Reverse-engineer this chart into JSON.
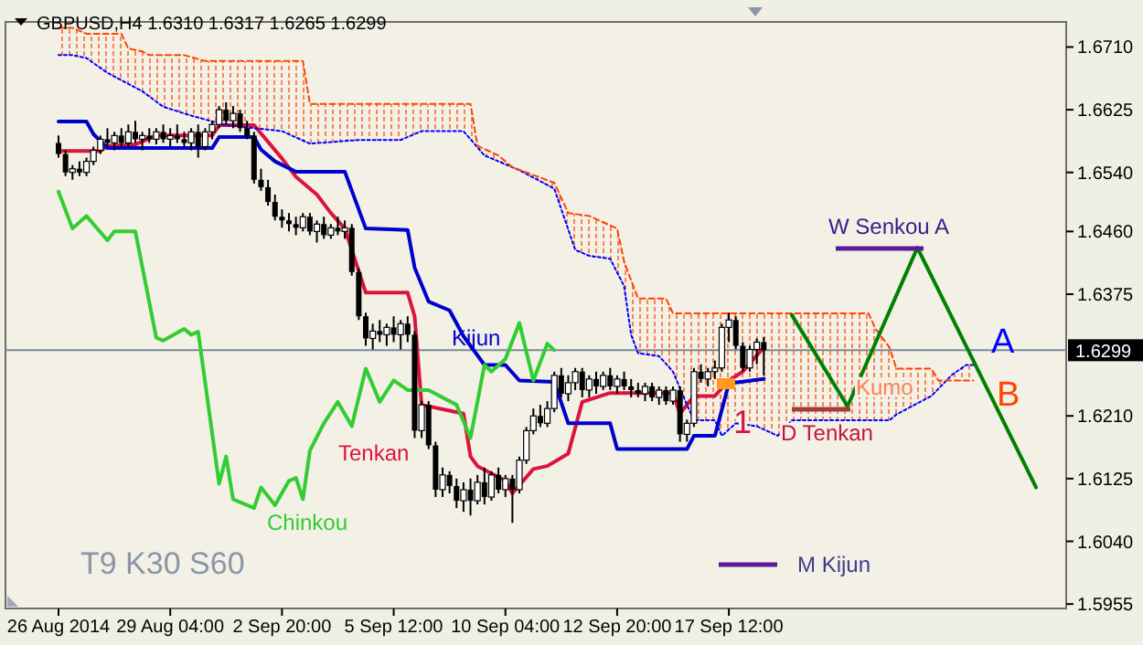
{
  "chart_data": {
    "type": "candlestick",
    "title": "GBPUSD,H4 1.6310 1.6317 1.6265 1.6299",
    "categories": [
      "26 Aug 2014",
      null,
      null,
      null,
      null,
      null,
      null,
      null,
      null,
      null,
      null,
      null,
      null,
      null,
      null,
      null,
      "29 Aug 04:00",
      null,
      null,
      null,
      null,
      null,
      null,
      null,
      null,
      null,
      null,
      null,
      null,
      null,
      null,
      null,
      "2 Sep 20:00",
      null,
      null,
      null,
      null,
      null,
      null,
      null,
      null,
      null,
      null,
      null,
      null,
      null,
      null,
      null,
      "5 Sep 12:00",
      null,
      null,
      null,
      null,
      null,
      null,
      null,
      null,
      null,
      null,
      null,
      null,
      null,
      null,
      null,
      "10 Sep 04:00",
      null,
      null,
      null,
      null,
      null,
      null,
      null,
      null,
      null,
      null,
      null,
      null,
      null,
      null,
      null,
      "12 Sep 20:00",
      null,
      null,
      null,
      null,
      null,
      null,
      null,
      null,
      null,
      null,
      null,
      null,
      null,
      null,
      null,
      "17 Sep 12:00",
      null,
      null,
      null,
      null,
      null,
      null,
      null,
      null,
      null,
      null,
      null,
      null,
      null,
      null,
      null,
      null,
      null,
      null,
      null,
      null,
      null,
      null,
      null,
      null,
      null,
      null,
      null,
      null,
      null,
      null,
      null,
      null,
      null,
      null,
      null,
      null,
      null,
      null,
      null,
      null,
      null,
      null,
      null,
      null,
      null,
      null,
      null
    ],
    "ohlc": [
      [
        1.658,
        1.659,
        1.656,
        1.6565
      ],
      [
        1.6565,
        1.657,
        1.6535,
        1.654
      ],
      [
        1.654,
        1.655,
        1.653,
        1.6545
      ],
      [
        1.6545,
        1.6555,
        1.6535,
        1.654
      ],
      [
        1.654,
        1.656,
        1.6535,
        1.6555
      ],
      [
        1.6555,
        1.6575,
        1.655,
        1.657
      ],
      [
        1.657,
        1.659,
        1.6565,
        1.6585
      ],
      [
        1.6585,
        1.66,
        1.6575,
        1.658
      ],
      [
        1.658,
        1.6595,
        1.657,
        1.659
      ],
      [
        1.659,
        1.66,
        1.6575,
        1.658
      ],
      [
        1.658,
        1.6605,
        1.6575,
        1.6595
      ],
      [
        1.6595,
        1.661,
        1.658,
        1.6585
      ],
      [
        1.6585,
        1.6595,
        1.657,
        1.659
      ],
      [
        1.659,
        1.66,
        1.658,
        1.6585
      ],
      [
        1.6585,
        1.66,
        1.6578,
        1.6595
      ],
      [
        1.6595,
        1.6605,
        1.658,
        1.6585
      ],
      [
        1.6585,
        1.66,
        1.6575,
        1.659
      ],
      [
        1.659,
        1.6605,
        1.658,
        1.6585
      ],
      [
        1.6585,
        1.6595,
        1.6575,
        1.658
      ],
      [
        1.658,
        1.66,
        1.657,
        1.6595
      ],
      [
        1.6595,
        1.6605,
        1.656,
        1.6575
      ],
      [
        1.6575,
        1.66,
        1.657,
        1.6595
      ],
      [
        1.6595,
        1.661,
        1.6585,
        1.6605
      ],
      [
        1.6605,
        1.663,
        1.66,
        1.6625
      ],
      [
        1.6625,
        1.6635,
        1.6605,
        1.661
      ],
      [
        1.661,
        1.663,
        1.66,
        1.662
      ],
      [
        1.662,
        1.6625,
        1.6595,
        1.66
      ],
      [
        1.66,
        1.661,
        1.6585,
        1.659
      ],
      [
        1.659,
        1.6595,
        1.6525,
        1.653
      ],
      [
        1.653,
        1.6545,
        1.6515,
        1.652
      ],
      [
        1.652,
        1.653,
        1.6495,
        1.65
      ],
      [
        1.65,
        1.651,
        1.6475,
        1.648
      ],
      [
        1.648,
        1.649,
        1.6465,
        1.6475
      ],
      [
        1.6475,
        1.6485,
        1.646,
        1.647
      ],
      [
        1.647,
        1.648,
        1.6455,
        1.6465
      ],
      [
        1.6465,
        1.6485,
        1.646,
        1.648
      ],
      [
        1.648,
        1.6485,
        1.6455,
        1.646
      ],
      [
        1.646,
        1.6475,
        1.6445,
        1.647
      ],
      [
        1.647,
        1.648,
        1.645,
        1.6455
      ],
      [
        1.6455,
        1.647,
        1.645,
        1.6465
      ],
      [
        1.6465,
        1.648,
        1.6455,
        1.646
      ],
      [
        1.646,
        1.6475,
        1.645,
        1.6465
      ],
      [
        1.6465,
        1.647,
        1.64,
        1.6405
      ],
      [
        1.6405,
        1.641,
        1.634,
        1.6345
      ],
      [
        1.6345,
        1.635,
        1.6305,
        1.6315
      ],
      [
        1.6315,
        1.6335,
        1.63,
        1.6325
      ],
      [
        1.6325,
        1.634,
        1.631,
        1.632
      ],
      [
        1.632,
        1.6335,
        1.6305,
        1.633
      ],
      [
        1.633,
        1.6345,
        1.631,
        1.632
      ],
      [
        1.632,
        1.634,
        1.63,
        1.6335
      ],
      [
        1.6335,
        1.6345,
        1.631,
        1.632
      ],
      [
        1.632,
        1.6325,
        1.618,
        1.619
      ],
      [
        1.619,
        1.623,
        1.618,
        1.6225
      ],
      [
        1.6225,
        1.623,
        1.6165,
        1.617
      ],
      [
        1.617,
        1.6175,
        1.61,
        1.611
      ],
      [
        1.611,
        1.614,
        1.61,
        1.613
      ],
      [
        1.613,
        1.6135,
        1.6105,
        1.6115
      ],
      [
        1.6115,
        1.6125,
        1.6085,
        1.6095
      ],
      [
        1.6095,
        1.612,
        1.608,
        1.611
      ],
      [
        1.611,
        1.6125,
        1.6075,
        1.6095
      ],
      [
        1.6095,
        1.613,
        1.609,
        1.612
      ],
      [
        1.612,
        1.614,
        1.609,
        1.61
      ],
      [
        1.61,
        1.6135,
        1.6095,
        1.613
      ],
      [
        1.613,
        1.614,
        1.6105,
        1.611
      ],
      [
        1.611,
        1.613,
        1.61,
        1.6125
      ],
      [
        1.6125,
        1.613,
        1.6065,
        1.611
      ],
      [
        1.611,
        1.6155,
        1.6105,
        1.615
      ],
      [
        1.615,
        1.6195,
        1.6145,
        1.619
      ],
      [
        1.619,
        1.622,
        1.6185,
        1.621
      ],
      [
        1.621,
        1.6225,
        1.6195,
        1.62
      ],
      [
        1.62,
        1.623,
        1.6195,
        1.622
      ],
      [
        1.622,
        1.627,
        1.6215,
        1.6265
      ],
      [
        1.6265,
        1.6275,
        1.6235,
        1.624
      ],
      [
        1.624,
        1.6265,
        1.623,
        1.6255
      ],
      [
        1.6255,
        1.6275,
        1.6245,
        1.627
      ],
      [
        1.627,
        1.6275,
        1.6235,
        1.6245
      ],
      [
        1.6245,
        1.6265,
        1.6235,
        1.626
      ],
      [
        1.626,
        1.627,
        1.624,
        1.625
      ],
      [
        1.625,
        1.627,
        1.6245,
        1.6265
      ],
      [
        1.6265,
        1.6275,
        1.6245,
        1.625
      ],
      [
        1.625,
        1.6265,
        1.624,
        1.626
      ],
      [
        1.626,
        1.627,
        1.6245,
        1.625
      ],
      [
        1.625,
        1.626,
        1.6235,
        1.6245
      ],
      [
        1.6245,
        1.6255,
        1.6235,
        1.624
      ],
      [
        1.624,
        1.6255,
        1.623,
        1.625
      ],
      [
        1.625,
        1.6255,
        1.623,
        1.6235
      ],
      [
        1.6235,
        1.625,
        1.6225,
        1.6245
      ],
      [
        1.6245,
        1.625,
        1.6225,
        1.623
      ],
      [
        1.623,
        1.625,
        1.6225,
        1.6245
      ],
      [
        1.6245,
        1.625,
        1.6175,
        1.6185
      ],
      [
        1.6185,
        1.6205,
        1.6175,
        1.62
      ],
      [
        1.62,
        1.6275,
        1.6195,
        1.627
      ],
      [
        1.627,
        1.628,
        1.6255,
        1.626
      ],
      [
        1.626,
        1.6275,
        1.625,
        1.627
      ],
      [
        1.627,
        1.6285,
        1.626,
        1.6275
      ],
      [
        1.6275,
        1.6335,
        1.627,
        1.633
      ],
      [
        1.633,
        1.635,
        1.631,
        1.634
      ],
      [
        1.634,
        1.6345,
        1.63,
        1.6305
      ],
      [
        1.6305,
        1.631,
        1.627,
        1.6275
      ],
      [
        1.6275,
        1.6305,
        1.627,
        1.63
      ],
      [
        1.63,
        1.6315,
        1.628,
        1.631
      ],
      [
        1.631,
        1.6317,
        1.6265,
        1.6299
      ],
      null,
      null,
      null,
      null,
      null,
      null,
      null,
      null,
      null,
      null,
      null,
      null,
      null,
      null,
      null,
      null,
      null,
      null,
      null,
      null,
      null,
      null,
      null,
      null,
      null,
      null,
      null,
      null,
      null,
      null,
      null,
      null,
      null,
      null,
      null,
      null,
      null,
      null,
      null,
      null,
      null,
      null
    ],
    "series": [
      {
        "name": "Tenkan",
        "type": "line",
        "color": "#dc143c",
        "line_style": "solid",
        "values": [
          1.6569,
          null,
          null,
          null,
          null,
          null,
          1.6569,
          1.6576,
          null,
          null,
          null,
          1.6578,
          null,
          null,
          1.659,
          null,
          null,
          null,
          null,
          null,
          null,
          null,
          1.659,
          1.6604,
          null,
          null,
          null,
          null,
          1.6604,
          null,
          null,
          null,
          1.6559,
          null,
          1.6534,
          null,
          null,
          1.651,
          null,
          1.6485,
          null,
          1.6464,
          null,
          null,
          1.6377,
          null,
          null,
          null,
          null,
          null,
          1.6377,
          1.6345,
          1.6225,
          null,
          null,
          null,
          1.6217,
          null,
          1.6213,
          1.6155,
          1.6142,
          null,
          null,
          null,
          1.6122,
          1.6105,
          null,
          null,
          1.6138,
          null,
          1.6142,
          null,
          null,
          1.6159,
          null,
          1.6229,
          null,
          null,
          null,
          1.6241,
          null,
          null,
          null,
          null,
          null,
          null,
          null,
          null,
          1.6241,
          1.6213,
          null,
          1.6237,
          null,
          null,
          1.6237,
          null,
          1.6258,
          null,
          1.627,
          null,
          null,
          1.6303,
          null,
          null,
          null,
          null,
          null,
          null,
          null,
          null,
          null,
          null,
          null,
          null,
          null,
          null,
          null,
          null,
          null,
          null,
          null,
          null,
          null,
          null,
          null,
          null,
          null,
          null,
          null,
          null,
          null,
          null,
          null,
          null,
          null,
          null,
          null,
          null,
          null,
          null,
          null,
          null,
          null,
          null
        ]
      },
      {
        "name": "Kijun",
        "type": "line",
        "color": "#0000cd",
        "line_style": "solid",
        "values": [
          1.6609,
          null,
          null,
          null,
          1.6609,
          1.6592,
          null,
          1.6573,
          null,
          null,
          null,
          null,
          null,
          null,
          null,
          null,
          null,
          null,
          null,
          null,
          null,
          null,
          1.6573,
          1.6588,
          null,
          null,
          null,
          null,
          1.6588,
          1.6571,
          null,
          1.6555,
          null,
          null,
          1.6541,
          null,
          null,
          null,
          null,
          null,
          null,
          1.6541,
          null,
          null,
          1.6464,
          null,
          null,
          null,
          null,
          null,
          1.6462,
          1.6411,
          null,
          1.6365,
          null,
          null,
          1.6353,
          null,
          1.6318,
          null,
          null,
          1.6279,
          null,
          null,
          1.6279,
          null,
          1.6258,
          null,
          null,
          null,
          null,
          1.6256,
          null,
          1.62,
          null,
          null,
          null,
          null,
          null,
          1.62,
          1.6165,
          null,
          null,
          null,
          null,
          null,
          null,
          null,
          null,
          null,
          1.6165,
          1.6183,
          null,
          null,
          1.6183,
          null,
          1.6254,
          null,
          null,
          null,
          null,
          1.626,
          null,
          null,
          null,
          null,
          null,
          null,
          null,
          null,
          null,
          null,
          null,
          null,
          null,
          null,
          null,
          null,
          null,
          null,
          null,
          null,
          null,
          null,
          null,
          null,
          null,
          null,
          null,
          null,
          null,
          null,
          null,
          null,
          null,
          null,
          null,
          null,
          null,
          null,
          null,
          null,
          null,
          null
        ]
      },
      {
        "name": "Chinkou",
        "type": "line",
        "color": "#32cd32",
        "line_style": "solid",
        "values": [
          1.6514,
          null,
          1.6464,
          null,
          1.6481,
          null,
          null,
          1.6448,
          1.646,
          null,
          null,
          1.646,
          null,
          null,
          1.6316,
          1.6312,
          null,
          null,
          1.6328,
          1.632,
          1.6324,
          null,
          null,
          1.6118,
          1.6155,
          1.6097,
          null,
          null,
          1.6085,
          1.6113,
          null,
          1.6089,
          null,
          1.6122,
          1.6126,
          1.6097,
          1.6163,
          null,
          1.62,
          null,
          1.6229,
          null,
          1.6196,
          null,
          1.6274,
          null,
          1.6229,
          null,
          1.6258,
          null,
          1.6245,
          null,
          null,
          1.6245,
          null,
          null,
          null,
          1.6225,
          null,
          1.618,
          null,
          1.6279,
          1.627,
          null,
          1.6287,
          null,
          1.6336,
          null,
          1.6258,
          null,
          1.6308,
          1.6299,
          null,
          null,
          null,
          null,
          null,
          null,
          null,
          null,
          null,
          null,
          null,
          null,
          null,
          null,
          null,
          null,
          null,
          null,
          null,
          null,
          null,
          null,
          null,
          null,
          null,
          null,
          null,
          null,
          null,
          null,
          null,
          null,
          null,
          null,
          null,
          null,
          null,
          null,
          null,
          null,
          null,
          null,
          null,
          null,
          null,
          null,
          null,
          null,
          null,
          null,
          null,
          null,
          null,
          null,
          null,
          null,
          null,
          null,
          null,
          null,
          null,
          null,
          null,
          null,
          null,
          null,
          null,
          null,
          null,
          null,
          null,
          null
        ]
      },
      {
        "name": "A",
        "type": "line",
        "color": "#0000ff",
        "line_style": "dotted",
        "values": [
          1.6699,
          null,
          1.6699,
          null,
          1.6695,
          null,
          null,
          1.6675,
          null,
          null,
          null,
          null,
          1.665,
          null,
          null,
          1.6629,
          null,
          null,
          null,
          1.6617,
          null,
          null,
          null,
          null,
          1.6604,
          null,
          null,
          null,
          null,
          null,
          null,
          null,
          1.6596,
          null,
          null,
          null,
          1.6579,
          null,
          null,
          null,
          null,
          null,
          null,
          1.6584,
          null,
          null,
          null,
          null,
          null,
          1.6584,
          null,
          null,
          1.6596,
          null,
          null,
          null,
          null,
          null,
          1.6596,
          null,
          null,
          1.6563,
          null,
          null,
          1.6551,
          null,
          1.6543,
          null,
          null,
          null,
          null,
          1.6518,
          null,
          null,
          1.6435,
          null,
          1.6427,
          null,
          null,
          1.6423,
          null,
          1.6386,
          1.632,
          1.6295,
          null,
          null,
          1.6291,
          null,
          1.627,
          null,
          1.6225,
          1.6204,
          null,
          null,
          1.6204,
          1.6183,
          null,
          1.62,
          null,
          null,
          1.6196,
          null,
          null,
          1.6183,
          null,
          1.6204,
          null,
          null,
          null,
          null,
          null,
          null,
          null,
          null,
          null,
          null,
          null,
          null,
          null,
          1.6204,
          1.6212,
          null,
          null,
          null,
          null,
          1.6237,
          null,
          null,
          1.6266,
          null,
          1.6279,
          1.6279,
          null,
          null,
          null,
          null,
          null,
          null,
          null,
          null,
          null,
          null,
          null,
          null
        ]
      },
      {
        "name": "B",
        "type": "line",
        "color": "#ff4500",
        "line_style": "dashed",
        "values": [
          1.6736,
          null,
          1.6736,
          null,
          1.6728,
          null,
          null,
          null,
          null,
          1.6728,
          1.6708,
          null,
          1.6704,
          1.6699,
          null,
          null,
          null,
          null,
          1.6699,
          null,
          null,
          1.6691,
          null,
          null,
          null,
          null,
          null,
          null,
          null,
          null,
          null,
          null,
          null,
          null,
          null,
          1.6691,
          1.6633,
          null,
          null,
          null,
          null,
          null,
          null,
          null,
          null,
          null,
          null,
          null,
          null,
          null,
          null,
          null,
          null,
          null,
          null,
          null,
          null,
          null,
          null,
          1.6633,
          1.6576,
          null,
          null,
          1.6563,
          null,
          1.6547,
          null,
          null,
          null,
          null,
          null,
          1.6526,
          null,
          1.6485,
          null,
          null,
          1.6481,
          null,
          null,
          null,
          1.6464,
          1.6419,
          null,
          1.6369,
          null,
          null,
          null,
          1.6369,
          1.6349,
          null,
          null,
          null,
          null,
          null,
          null,
          null,
          null,
          null,
          null,
          null,
          null,
          null,
          null,
          null,
          null,
          null,
          null,
          null,
          null,
          null,
          null,
          null,
          null,
          null,
          null,
          null,
          1.6349,
          1.6328,
          null,
          1.6303,
          1.6274,
          null,
          null,
          null,
          null,
          1.6274,
          1.6258,
          null,
          null,
          null,
          null,
          1.6258,
          null,
          null,
          null,
          null,
          null,
          null,
          null,
          null,
          null,
          null,
          null,
          null
        ],
        "lower": [
          1.6699,
          null,
          1.6699,
          null,
          1.6695,
          null,
          null,
          1.6675,
          null,
          1.6665,
          1.666,
          null,
          1.665,
          1.6643,
          null,
          1.6629,
          null,
          null,
          1.662,
          1.6617,
          null,
          1.6612,
          null,
          null,
          1.6604,
          null,
          null,
          null,
          null,
          null,
          null,
          null,
          1.6596,
          null,
          null,
          1.6583,
          1.6579,
          null,
          null,
          null,
          null,
          null,
          null,
          1.6584,
          null,
          null,
          null,
          null,
          null,
          1.6584,
          null,
          null,
          1.6596,
          null,
          null,
          null,
          null,
          null,
          1.6596,
          1.6585,
          1.6574,
          1.6563,
          null,
          1.6555,
          1.6551,
          1.6547,
          1.6543,
          null,
          null,
          null,
          null,
          1.6518,
          null,
          1.6463,
          1.6435,
          null,
          1.6427,
          null,
          null,
          1.6423,
          1.6405,
          1.6386,
          1.632,
          1.6295,
          null,
          null,
          1.6291,
          1.6281,
          1.627,
          null,
          1.6225,
          1.6204,
          null,
          null,
          1.6204,
          1.6183,
          null,
          1.62,
          null,
          null,
          1.6196,
          null,
          null,
          1.6183,
          null,
          1.6204,
          null,
          null,
          null,
          null,
          null,
          null,
          null,
          null,
          null,
          null,
          1.6204,
          1.6204,
          null,
          1.6204,
          1.6212,
          null,
          null,
          null,
          null,
          1.6237,
          1.6247,
          null,
          1.6266,
          null,
          1.6279,
          1.6279,
          null,
          null,
          null,
          null,
          null,
          null,
          null,
          null,
          null,
          null,
          null,
          null
        ],
        "upper": [
          1.6736,
          null,
          1.6736,
          null,
          1.6728,
          null,
          null,
          1.6728,
          null,
          1.6728,
          1.6708,
          null,
          1.6704,
          1.6699,
          null,
          1.6699,
          null,
          null,
          1.6699,
          1.6696,
          null,
          1.6691,
          null,
          null,
          1.6691,
          null,
          null,
          null,
          null,
          null,
          null,
          null,
          1.6691,
          null,
          null,
          1.6691,
          1.6633,
          null,
          null,
          null,
          null,
          null,
          null,
          1.6633,
          null,
          null,
          null,
          null,
          null,
          1.6633,
          null,
          null,
          1.6633,
          null,
          null,
          null,
          null,
          null,
          1.6633,
          1.6633,
          1.6576,
          1.6572,
          null,
          1.6563,
          1.6555,
          1.6547,
          1.6544,
          null,
          null,
          null,
          null,
          1.6526,
          null,
          1.6485,
          1.6484,
          null,
          1.6481,
          null,
          null,
          1.6468,
          1.6464,
          1.6419,
          1.6394,
          1.6369,
          null,
          null,
          1.6369,
          1.6369,
          1.6349,
          null,
          1.6349,
          1.6349,
          null,
          null,
          1.6349,
          1.6349,
          null,
          1.6349,
          null,
          null,
          1.6349,
          null,
          null,
          1.6349,
          null,
          1.6349,
          null,
          null,
          null,
          null,
          null,
          null,
          null,
          null,
          null,
          null,
          1.6349,
          1.6328,
          null,
          1.6303,
          1.6274,
          null,
          null,
          null,
          null,
          1.6274,
          1.6258,
          null,
          1.6258,
          null,
          1.6258,
          1.6258,
          null,
          null,
          null,
          null,
          null,
          null,
          null,
          null,
          null,
          null,
          null,
          null
        ]
      },
      {
        "type": "line",
        "color": "#008000",
        "line_style": "solid",
        "values": [
          null,
          null,
          null,
          null,
          null,
          null,
          null,
          null,
          null,
          null,
          null,
          null,
          null,
          null,
          null,
          null,
          null,
          null,
          null,
          null,
          null,
          null,
          null,
          null,
          null,
          null,
          null,
          null,
          null,
          null,
          null,
          null,
          null,
          null,
          null,
          null,
          null,
          null,
          null,
          null,
          null,
          null,
          null,
          null,
          null,
          null,
          null,
          null,
          null,
          null,
          null,
          null,
          null,
          null,
          null,
          null,
          null,
          null,
          null,
          null,
          null,
          null,
          null,
          null,
          null,
          null,
          null,
          null,
          null,
          null,
          null,
          null,
          null,
          null,
          null,
          null,
          null,
          null,
          null,
          null,
          null,
          null,
          null,
          null,
          null,
          null,
          null,
          null,
          null,
          null,
          null,
          null,
          null,
          null,
          null,
          null,
          null,
          null,
          null,
          null,
          null,
          null,
          null,
          null,
          null,
          1.6347,
          null,
          null,
          null,
          null,
          null,
          null,
          null,
          1.6223,
          null,
          null,
          null,
          null,
          null,
          null,
          null,
          null,
          null,
          1.6438,
          null,
          null,
          null,
          null,
          null,
          null,
          null,
          null,
          null,
          null,
          null,
          null,
          null,
          null,
          null,
          null,
          1.6113,
          null,
          null,
          null
        ]
      }
    ],
    "ylim": [
      1.5949,
      1.6744
    ],
    "yticks": [
      {
        "value": 1.671,
        "label": "1.6710"
      },
      1.6625,
      {
        "value": 1.654,
        "label": "1.6540"
      },
      {
        "value": 1.646,
        "label": "1.6460"
      },
      1.6375,
      {
        "value": 1.621,
        "label": "1.6210"
      },
      1.6125,
      {
        "value": 1.604,
        "label": "1.6040"
      },
      1.5955
    ],
    "ref_lines": [
      {
        "axis": "y",
        "value": 1.6299,
        "label": "1.6299",
        "color": "#7a8a9a"
      }
    ],
    "annotations": [
      "W Senkou A",
      "D Tenkan",
      "M Kijun",
      "Kumo",
      "1",
      "T9 K30 S60"
    ]
  }
}
